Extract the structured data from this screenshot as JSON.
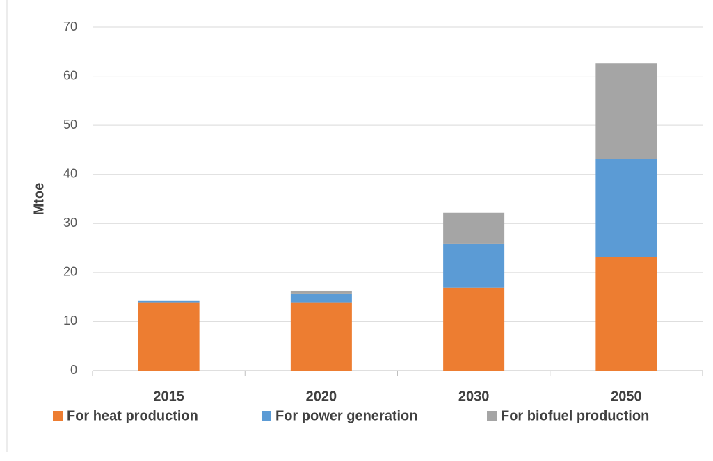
{
  "chart_data": {
    "type": "stacked_bar",
    "y_label": "Mtoe",
    "categories": [
      "2015",
      "2020",
      "2030",
      "2050"
    ],
    "series": [
      {
        "name": "For heat production",
        "color": "#ED7D31",
        "values": [
          13.8,
          13.8,
          16.9,
          23.1
        ]
      },
      {
        "name": "For power generation",
        "color": "#5B9BD5",
        "values": [
          0.4,
          1.8,
          8.9,
          20.0
        ]
      },
      {
        "name": "For biofuel production",
        "color": "#A5A5A5",
        "values": [
          0,
          0.7,
          6.4,
          19.5
        ]
      }
    ],
    "ylim": [
      0,
      70
    ],
    "yticks": [
      0,
      10,
      20,
      30,
      40,
      50,
      60,
      70
    ],
    "grid": true,
    "legend": "bottom"
  }
}
